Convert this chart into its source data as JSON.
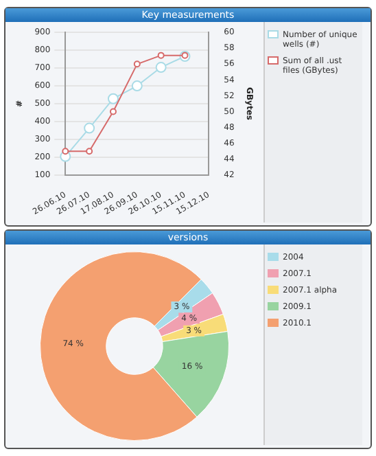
{
  "chart_data": [
    {
      "type": "line",
      "title": "Key measurements",
      "categories": [
        "26.06.10",
        "26.07.10",
        "17.08.10",
        "26.09.10",
        "26.10.10",
        "15.11.10",
        "15.12.10"
      ],
      "ylabel": "#",
      "y2label": "GBytes",
      "ylim": [
        100,
        900
      ],
      "yticks": [
        100,
        200,
        300,
        400,
        500,
        600,
        700,
        800,
        900
      ],
      "y2lim": [
        42,
        60
      ],
      "y2ticks": [
        42,
        44,
        46,
        48,
        50,
        52,
        54,
        56,
        58,
        60
      ],
      "grid": "y",
      "legend": "right",
      "marker": "circle",
      "series": [
        {
          "name": "Number of unique wells (#)",
          "color": "#a9dbe6",
          "values": [
            204,
            363,
            528,
            600,
            704,
            766,
            null
          ]
        },
        {
          "name": "Sum of all .ust files (GBytes)",
          "color": "#d66a6a",
          "axis": "y2",
          "values": [
            45,
            45,
            50,
            56,
            57.1,
            57.1,
            null
          ]
        }
      ]
    },
    {
      "type": "donut",
      "title": "versions",
      "categories": [
        "2004",
        "2007.1",
        "2007.1 alpha",
        "2009.1",
        "2010.1"
      ],
      "values": [
        3,
        4,
        3,
        16,
        74
      ],
      "colors": [
        "#a8dcea",
        "#f0a0b0",
        "#f8dc78",
        "#98d4a0",
        "#f4a070"
      ],
      "value_labels": [
        "3 %",
        "4 %",
        "3 %",
        "16 %",
        "74 %"
      ],
      "legend": "right"
    }
  ]
}
